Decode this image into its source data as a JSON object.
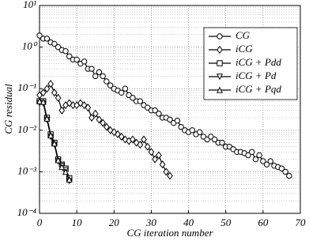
{
  "chart_data": {
    "type": "line",
    "x_label": "CG iteration number",
    "y_label": "CG residual",
    "xlim": [
      0,
      70
    ],
    "xticks": [
      0,
      10,
      20,
      30,
      40,
      50,
      60,
      70
    ],
    "ylim": [
      0.0001,
      10
    ],
    "log_y": true,
    "grid": true,
    "legend": "upper right",
    "yticks": [
      {
        "value": 0.0001,
        "label": "10⁻⁴"
      },
      {
        "value": 0.001,
        "label": "10⁻³"
      },
      {
        "value": 0.01,
        "label": "10⁻²"
      },
      {
        "value": 0.1,
        "label": "10⁻¹"
      },
      {
        "value": 1,
        "label": "10⁰"
      },
      {
        "value": 10,
        "label": "10¹"
      }
    ],
    "series": [
      {
        "name": "CG",
        "color": "#000000",
        "marker": "circle",
        "x": [
          0,
          1,
          2,
          3,
          4,
          5,
          6,
          7,
          8,
          9,
          10,
          11,
          12,
          13,
          14,
          15,
          16,
          17,
          18,
          19,
          20,
          21,
          22,
          23,
          24,
          25,
          26,
          27,
          28,
          29,
          30,
          31,
          32,
          33,
          34,
          35,
          36,
          37,
          38,
          39,
          40,
          41,
          42,
          43,
          44,
          45,
          46,
          47,
          48,
          49,
          50,
          51,
          52,
          53,
          54,
          55,
          56,
          57,
          58,
          59,
          60,
          61,
          62,
          63,
          64,
          65,
          66,
          67
        ],
        "values": [
          1.9,
          1.6,
          1.6,
          1.3,
          1.2,
          1.0,
          0.85,
          0.8,
          0.6,
          0.5,
          0.5,
          0.4,
          0.45,
          0.3,
          0.3,
          0.2,
          0.25,
          0.2,
          0.15,
          0.12,
          0.1,
          0.09,
          0.08,
          0.1,
          0.07,
          0.06,
          0.05,
          0.05,
          0.04,
          0.035,
          0.03,
          0.03,
          0.025,
          0.02,
          0.02,
          0.018,
          0.015,
          0.017,
          0.012,
          0.01,
          0.009,
          0.01,
          0.008,
          0.009,
          0.007,
          0.006,
          0.007,
          0.006,
          0.005,
          0.005,
          0.004,
          0.004,
          0.0035,
          0.003,
          0.003,
          0.0028,
          0.0025,
          0.003,
          0.002,
          0.0025,
          0.0018,
          0.0015,
          0.0018,
          0.0014,
          0.0013,
          0.0012,
          0.001,
          0.0008
        ]
      },
      {
        "name": "iCG",
        "color": "#000000",
        "marker": "diamond",
        "x": [
          0,
          1,
          2,
          3,
          4,
          5,
          6,
          7,
          8,
          9,
          10,
          11,
          12,
          13,
          14,
          15,
          16,
          17,
          18,
          19,
          20,
          21,
          22,
          23,
          24,
          25,
          26,
          27,
          28,
          29,
          30,
          31,
          32,
          33,
          34,
          35
        ],
        "values": [
          0.07,
          0.08,
          0.1,
          0.13,
          0.08,
          0.06,
          0.03,
          0.04,
          0.045,
          0.04,
          0.04,
          0.045,
          0.04,
          0.035,
          0.02,
          0.025,
          0.018,
          0.015,
          0.012,
          0.01,
          0.009,
          0.008,
          0.007,
          0.006,
          0.0055,
          0.006,
          0.005,
          0.0045,
          0.006,
          0.004,
          0.003,
          0.002,
          0.0025,
          0.0015,
          0.001,
          0.0008
        ]
      },
      {
        "name": "iCG + Pdd",
        "color": "#000000",
        "marker": "square",
        "x": [
          0,
          1,
          2,
          3,
          4,
          5,
          6,
          7,
          8
        ],
        "values": [
          0.05,
          0.05,
          0.02,
          0.008,
          0.005,
          0.002,
          0.0015,
          0.0012,
          0.0007
        ]
      },
      {
        "name": "iCG + Pd",
        "color": "#000000",
        "marker": "triangle-down",
        "x": [
          0,
          1,
          2,
          3,
          4,
          5,
          6,
          7,
          8
        ],
        "values": [
          0.045,
          0.045,
          0.018,
          0.007,
          0.0045,
          0.0018,
          0.0014,
          0.0011,
          0.0006
        ]
      },
      {
        "name": "iCG + Pqd",
        "color": "#000000",
        "marker": "triangle-up",
        "x": [
          0,
          1,
          2,
          3,
          4,
          5,
          6,
          7,
          8
        ],
        "values": [
          0.05,
          0.048,
          0.019,
          0.0075,
          0.0048,
          0.0019,
          0.0013,
          0.001,
          0.00065
        ]
      }
    ]
  }
}
